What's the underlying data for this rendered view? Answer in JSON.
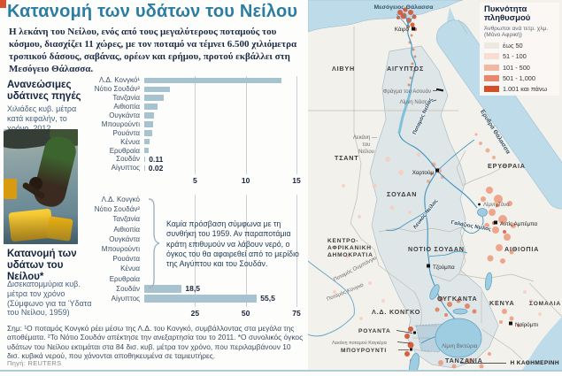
{
  "page": {
    "corner_mark_color": "#d6512c"
  },
  "header": {
    "title": "Κατανομή των υδάτων του Νείλου",
    "intro": "Η λεκάνη του Νείλου, ενός από τους μεγαλύτερους ποταμούς του κόσμου, διασχίζει 11 χώρες, με τον ποταμό να τέμνει 6.500 χιλιόμετρα τροπικού δάσους, σαβάνας, ορέων και ερήμου, προτού εκβάλλει στη Μεσόγειο Θάλασσα."
  },
  "sidebar": {
    "section1_heading": "Ανανεώσιμες υδάτινες πηγές",
    "section1_sub": "Χιλιάδες κυβ. μέτρα κατά κεφαλήν, το χρόνο, 2012",
    "section2_heading": "Κατανομή των υδάτων του Νείλου*",
    "section2_sub": "Δισεκατομμύρια κυβ. μέτρα τον χρόνο (Σύμφωνο για τα Ύδατα του Νείλου, 1959)"
  },
  "chart_data": [
    {
      "type": "bar",
      "orientation": "horizontal",
      "title": "Ανανεώσιμες υδάτινες πηγές",
      "unit_label": "Χιλιάδες κυβ. μέτρα κατά κεφαλήν, το χρόνο, 2012",
      "categories": [
        "Λ.Δ. Κονγκό¹",
        "Νότιο Σουδάν²",
        "Τανζανία",
        "Αιθιοπία",
        "Ουγκάντα",
        "Μπουρούντι",
        "Ρουάντα",
        "Κένυα",
        "Ερυθραία",
        "Σουδάν",
        "Αίγυπτος"
      ],
      "values": [
        13.5,
        2.5,
        1.9,
        1.3,
        1.0,
        0.9,
        0.8,
        0.5,
        0.45,
        0.11,
        0.02
      ],
      "bar_labels": [
        "",
        "",
        "",
        "",
        "",
        "",
        "",
        "",
        "",
        "0.11",
        "0.02"
      ],
      "xlim": [
        0,
        15
      ],
      "xticks": [
        5,
        10,
        15
      ],
      "grid": true,
      "bar_color": "#a7c3d0"
    },
    {
      "type": "bar",
      "orientation": "horizontal",
      "title": "Κατανομή των υδάτων του Νείλου*",
      "unit_label": "Δισεκατομμύρια κυβ. μέτρα τον χρόνο (Σύμφωνο για τα Ύδατα του Νείλου, 1959)",
      "categories": [
        "Λ.Δ. Κονγκό",
        "Νότιο Σουδάν²",
        "Τανζανία",
        "Αιθιοπία",
        "Ουγκάντα",
        "Μπουρούντι",
        "Ρουάντα",
        "Κένυα",
        "Ερυθραία",
        "Σουδάν",
        "Αίγυπτος"
      ],
      "values": [
        null,
        null,
        null,
        null,
        null,
        null,
        null,
        null,
        null,
        18.5,
        55.5
      ],
      "bar_labels": [
        "",
        "",
        "",
        "",
        "",
        "",
        "",
        "",
        "",
        "18,5",
        "55,5"
      ],
      "annotation": "Καμία πρόσβαση σύμφωνα με τη συνθήκη του 1959. Αν παραποτάμια κράτη επιθυμούν να λάβουν νερό, ο όγκος του θα αφαιρεθεί από το μερίδιο της Αιγύπτου και του Σουδάν.",
      "xlim": [
        0,
        75
      ],
      "xticks": [
        25,
        50,
        75
      ],
      "grid": true,
      "bar_color": "#a7c3d0"
    }
  ],
  "footnote": {
    "text": "Σημ: ¹Ο ποταμός Κονγκό ρέει μέσω της Λ.Δ. του Κονγκό, συμβάλλοντας στα μεγάλα της αποθέματα. ²Το Νότιο Σουδάν απέκτησε την ανεξαρτησία του το 2011. *Ο συνολικός όγκος υδάτων του Νείλου εκτιμάται στα 84 δισ. κυβ. μέτρα τον χρόνο, που περιλαμβάνουν 10 δισ. κυβικά νερού, που χάνονται αποθηκευμένα σε ταμιευτήρες.",
    "source": "Πηγή: REUTERS"
  },
  "map": {
    "legend": {
      "title": "Πυκνότητα πληθυσμού",
      "subtitle": "Άνθρωποι ανά τετρ. χλμ. (Μόνο Αφρική)",
      "items": [
        {
          "label": "έως 50",
          "color": "#ece9e1"
        },
        {
          "label": "51 - 100",
          "color": "#f8ddd0"
        },
        {
          "label": "101 - 500",
          "color": "#f2b7a0"
        },
        {
          "label": "501 - 1,000",
          "color": "#ea876b"
        },
        {
          "label": "1.001 και πάνω",
          "color": "#d34f28"
        }
      ]
    },
    "labels": {
      "mediterranean": "Μεσόγειος Θάλασσα",
      "red_sea": "Ερυθρά Θάλασσα",
      "libya": "ΛΙΒΥΗ",
      "egypt": "ΑΙΓΥΠΤΟΣ",
      "chad": "ΤΣΑΝΤ",
      "sudan": "ΣΟΥΔΑΝ",
      "eritrea": "ΕΡΥΘΡΑΙΑ",
      "car_1": "ΚΕΝΤΡΟ-",
      "car_2": "ΑΦΡΙΚΑΝΙΚΗ",
      "car_3": "ΔΗΜΟΚΡΑΤΙΑ",
      "south_sudan": "ΝΟΤΙΟ ΣΟΥΔΑΝ",
      "ethiopia": "ΑΙΘΙΟΠΙΑ",
      "dr_congo": "Λ.Δ. ΚΟΝΓΚΟ",
      "uganda": "ΟΥΓΚΑΝΤΑ",
      "kenya": "ΚΕΝΥΑ",
      "somalia": "ΣΟΜΑΛΙΑ",
      "rwanda": "ΡΟΥΑΝΤΑ",
      "burundi": "ΜΠΟΥΡΟΥΝΤΙ",
      "tanzania": "ΤΑΝΖΑΝΙΑ",
      "cairo": "Κάιρο",
      "khartoum": "Χαρτούμ",
      "addis": "Αντίς Αμπέμπα",
      "juba": "Τζούμπα",
      "nairobi": "Ναϊρόμπι",
      "aswan_dam": "Φράγμα του Ασουάν",
      "lake_nasser": "Λίμνη Νάσερ",
      "nile_river": "Ποταμός Νείλος",
      "nile_basin_1": "Λεκάνη —",
      "nile_basin_2": "του",
      "nile_basin_3": "Νείλου",
      "white_nile": "Λευκός Νείλος",
      "blue_nile": "Γαλάζιος Νείλος",
      "lake_tana": "Λίμνη Τάνα",
      "lake_victoria": "Λίμνη Βικτώρια",
      "kagera_basin": "Λεκάνη ποταμού Καγκέρα",
      "ubangi_river": "Ποταμός Ουμπάνγκι",
      "congo_river": "Ποταμός Κονγκό",
      "credit": "Η ΚΑΘΗΜΕΡΙΝΗ"
    }
  }
}
